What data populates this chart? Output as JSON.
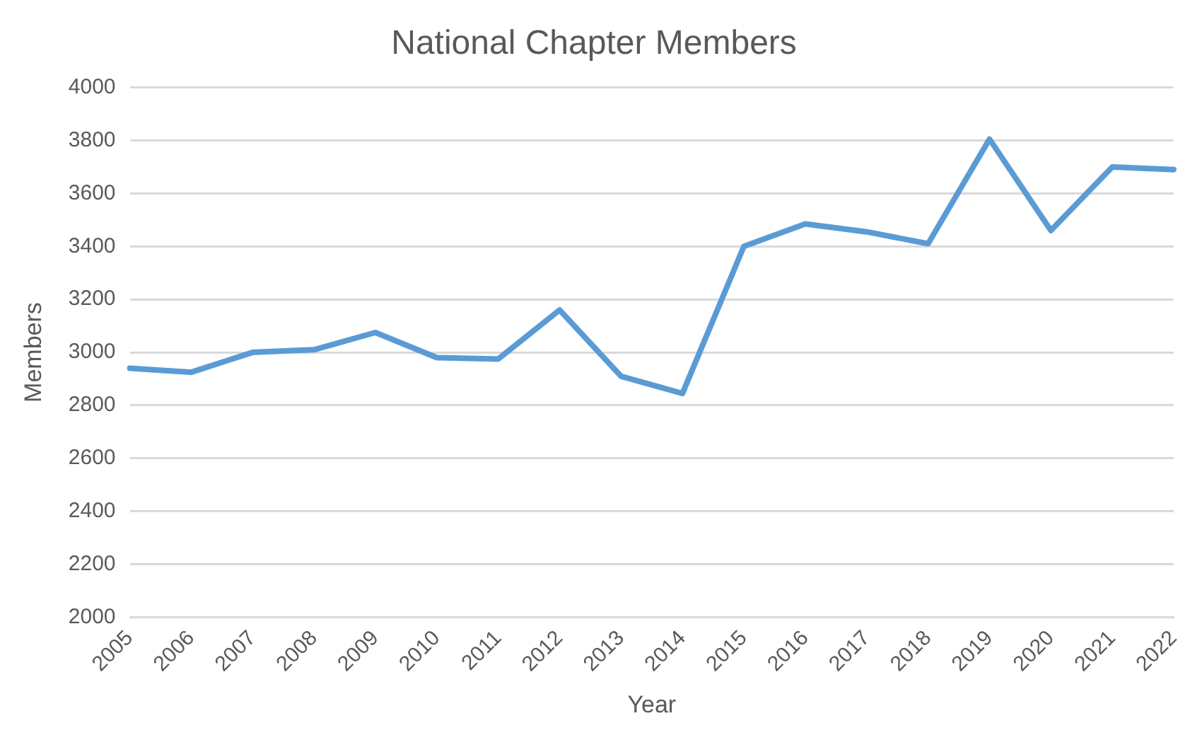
{
  "chart_data": {
    "type": "line",
    "title": "National Chapter Members",
    "xlabel": "Year",
    "ylabel": "Members",
    "categories": [
      "2005",
      "2006",
      "2007",
      "2008",
      "2009",
      "2010",
      "2011",
      "2012",
      "2013",
      "2014",
      "2015",
      "2016",
      "2017",
      "2018",
      "2019",
      "2020",
      "2021",
      "2022"
    ],
    "series": [
      {
        "color": "#5b9bd5",
        "values": [
          2940,
          2925,
          3000,
          3010,
          3075,
          2980,
          2975,
          3160,
          2910,
          2845,
          3400,
          3485,
          3455,
          3410,
          3805,
          3460,
          3700,
          3690
        ]
      }
    ],
    "ylim": [
      2000,
      4000
    ],
    "yticks": [
      2000,
      2200,
      2400,
      2600,
      2800,
      3000,
      3200,
      3400,
      3600,
      3800,
      4000
    ],
    "grid": "y",
    "legend": false,
    "marker": "none",
    "line_style": "solid"
  }
}
